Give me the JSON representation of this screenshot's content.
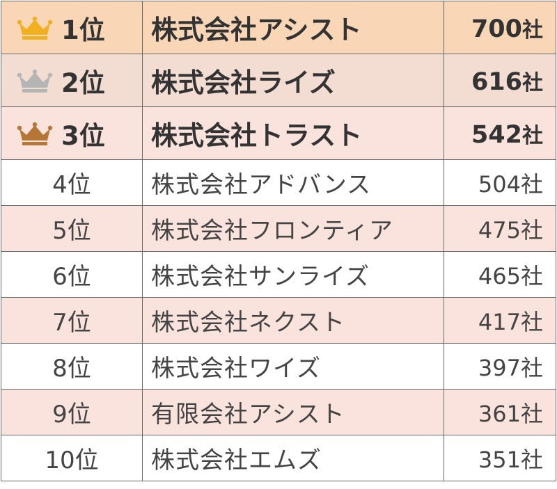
{
  "table": {
    "rows": [
      {
        "rank": "1位",
        "name": "株式会社アシスト",
        "count": "700",
        "unit": "社",
        "crown": "gold-crown-icon",
        "bg": "#f9d7b6"
      },
      {
        "rank": "2位",
        "name": "株式会社ライズ",
        "count": "616",
        "unit": "社",
        "crown": "silver-crown-icon",
        "bg": "#f3ddd2"
      },
      {
        "rank": "3位",
        "name": "株式会社トラスト",
        "count": "542",
        "unit": "社",
        "crown": "bronze-crown-icon",
        "bg": "#f9e3dc"
      },
      {
        "rank": "4位",
        "name": "株式会社アドバンス",
        "count": "504",
        "unit": "社",
        "bg": "#ffffff"
      },
      {
        "rank": "5位",
        "name": "株式会社フロンティア",
        "count": "475",
        "unit": "社",
        "bg": "#f9e3dc"
      },
      {
        "rank": "6位",
        "name": "株式会社サンライズ",
        "count": "465",
        "unit": "社",
        "bg": "#ffffff"
      },
      {
        "rank": "7位",
        "name": "株式会社ネクスト",
        "count": "417",
        "unit": "社",
        "bg": "#f9e3dc"
      },
      {
        "rank": "8位",
        "name": "株式会社ワイズ",
        "count": "397",
        "unit": "社",
        "bg": "#ffffff"
      },
      {
        "rank": "9位",
        "name": "有限会社アシスト",
        "count": "361",
        "unit": "社",
        "bg": "#f9e3dc"
      },
      {
        "rank": "10位",
        "name": "株式会社エムズ",
        "count": "351",
        "unit": "社",
        "bg": "#ffffff"
      }
    ]
  },
  "colors": {
    "gold": "#f0b020",
    "silver": "#b5b5b5",
    "bronze": "#b57638",
    "border": "#666666"
  }
}
